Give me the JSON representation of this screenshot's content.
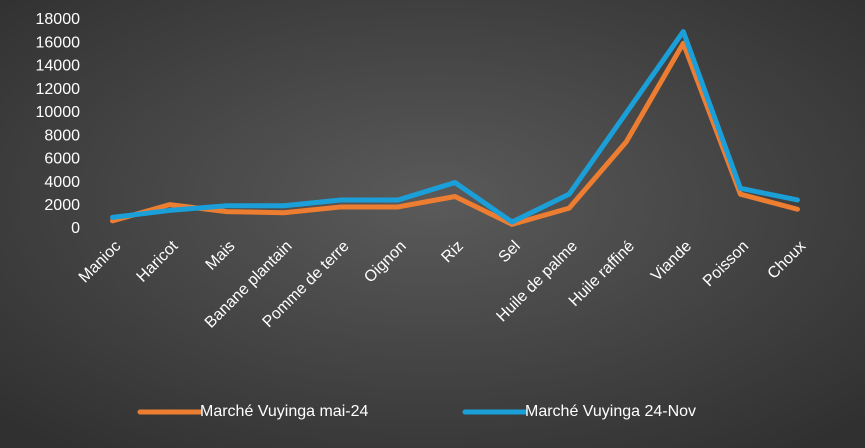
{
  "chart_data": {
    "type": "line",
    "categories": [
      "Manioc",
      "Haricot",
      "Mais",
      "Banane plantain",
      "Pomme de terre",
      "Oignon",
      "Riz",
      "Sel",
      "Huile de palme",
      "Huile raffiné",
      "Viande",
      "Poisson",
      "Choux"
    ],
    "series": [
      {
        "name": "Marché Vuyinga mai-24",
        "color": "#ed7d31",
        "values": [
          700,
          2100,
          1500,
          1400,
          1900,
          1900,
          2800,
          400,
          1800,
          7500,
          16000,
          3000,
          1700
        ]
      },
      {
        "name": "Marché Vuyinga 24-Nov",
        "color": "#1b9fd8",
        "values": [
          1000,
          1600,
          2000,
          2000,
          2500,
          2500,
          4000,
          600,
          3000,
          10000,
          17000,
          3500,
          2500
        ]
      }
    ],
    "ylim": [
      0,
      18000
    ],
    "yticks": [
      0,
      2000,
      4000,
      6000,
      8000,
      10000,
      12000,
      14000,
      16000,
      18000
    ],
    "grid": false,
    "legend": "bottom"
  }
}
